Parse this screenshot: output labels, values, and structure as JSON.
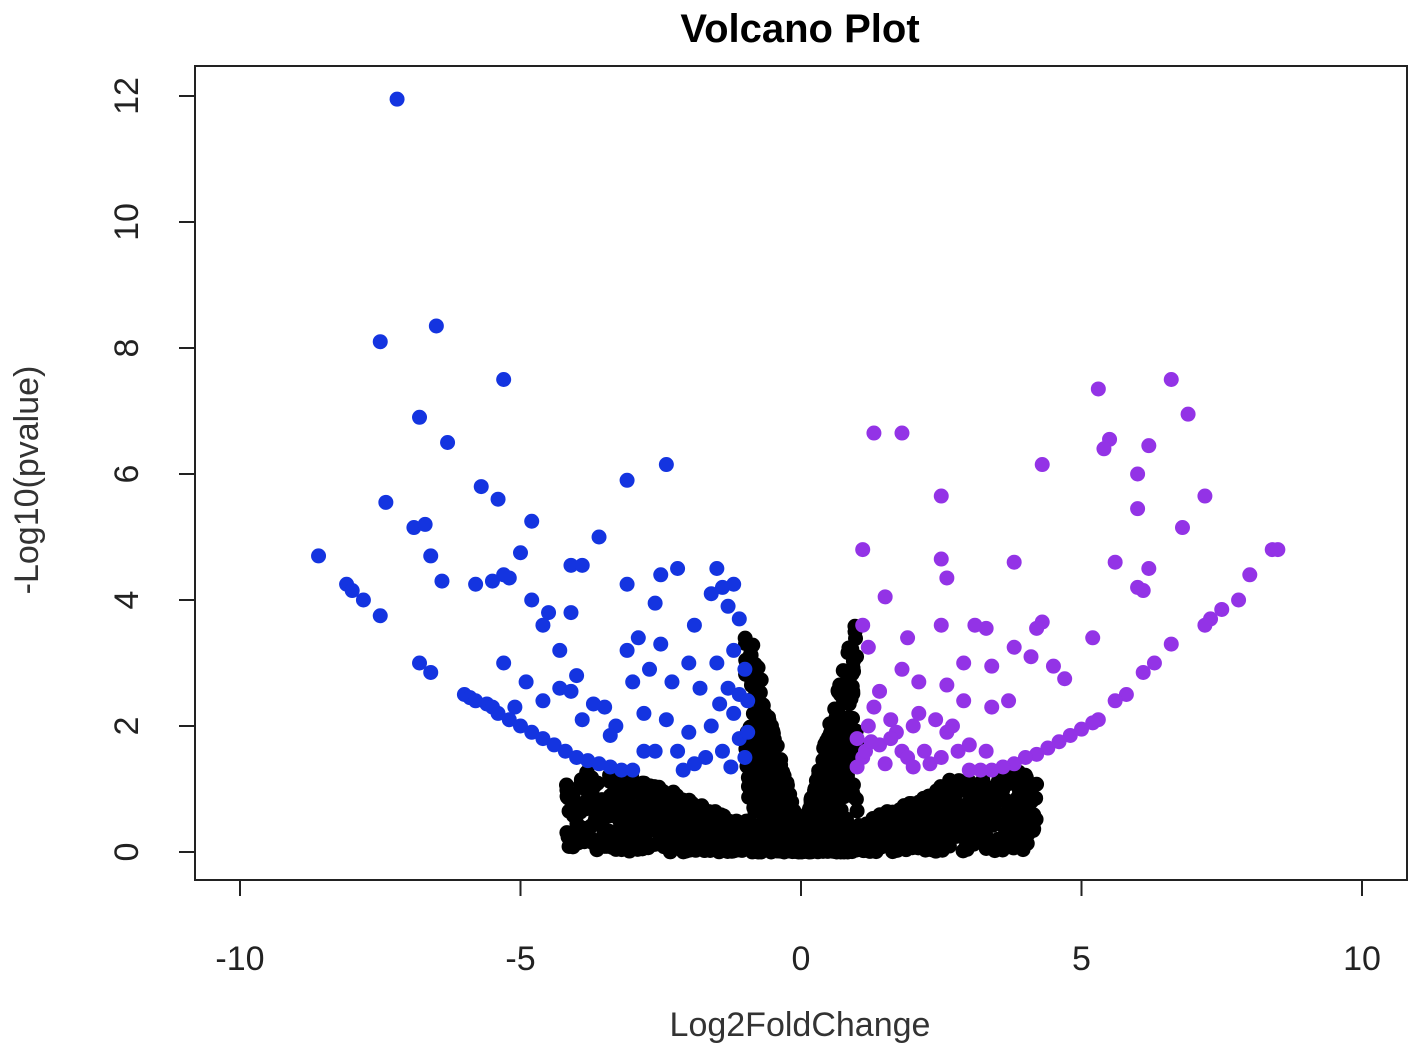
{
  "chart_data": {
    "type": "scatter",
    "title": "Volcano Plot",
    "xlabel": "Log2FoldChange",
    "ylabel": "-Log10(pvalue)",
    "xlim": [
      -10,
      10
    ],
    "ylim": [
      0,
      12
    ],
    "xticks": [
      "-10",
      "-5",
      "0",
      "5",
      "10"
    ],
    "yticks": [
      "0",
      "2",
      "4",
      "6",
      "8",
      "10",
      "12"
    ],
    "grid": false,
    "legend": "none",
    "colors": {
      "down": "#1434e0",
      "up": "#9333e6",
      "ns": "#000000"
    },
    "series": [
      {
        "color": "#1434e0",
        "points": [
          [
            -7.2,
            11.95
          ],
          [
            -6.5,
            8.35
          ],
          [
            -7.5,
            8.1
          ],
          [
            -5.3,
            7.5
          ],
          [
            -6.8,
            6.9
          ],
          [
            -6.3,
            6.5
          ],
          [
            -2.4,
            6.15
          ],
          [
            -3.1,
            5.9
          ],
          [
            -5.7,
            5.8
          ],
          [
            -5.4,
            5.6
          ],
          [
            -7.4,
            5.55
          ],
          [
            -4.8,
            5.25
          ],
          [
            -6.9,
            5.15
          ],
          [
            -6.7,
            5.2
          ],
          [
            -3.6,
            5.0
          ],
          [
            -8.6,
            4.7
          ],
          [
            -6.6,
            4.7
          ],
          [
            -5.0,
            4.75
          ],
          [
            -4.1,
            4.55
          ],
          [
            -3.9,
            4.55
          ],
          [
            -1.5,
            4.5
          ],
          [
            -2.2,
            4.5
          ],
          [
            -2.5,
            4.4
          ],
          [
            -5.3,
            4.4
          ],
          [
            -5.5,
            4.3
          ],
          [
            -5.2,
            4.35
          ],
          [
            -6.4,
            4.3
          ],
          [
            -3.1,
            4.25
          ],
          [
            -5.8,
            4.25
          ],
          [
            -8.1,
            4.25
          ],
          [
            -8.0,
            4.15
          ],
          [
            -7.8,
            4.0
          ],
          [
            -4.8,
            4.0
          ],
          [
            -2.6,
            3.95
          ],
          [
            -4.5,
            3.8
          ],
          [
            -4.1,
            3.8
          ],
          [
            -7.5,
            3.75
          ],
          [
            -4.6,
            3.6
          ],
          [
            -1.4,
            4.2
          ],
          [
            -1.2,
            4.25
          ],
          [
            -1.3,
            3.9
          ],
          [
            -1.1,
            3.7
          ],
          [
            -1.6,
            4.1
          ],
          [
            -1.9,
            3.6
          ],
          [
            -2.9,
            3.4
          ],
          [
            -2.5,
            3.3
          ],
          [
            -3.1,
            3.2
          ],
          [
            -4.3,
            3.2
          ],
          [
            -3.5,
            2.3
          ],
          [
            -2.0,
            3.0
          ],
          [
            -3.0,
            2.7
          ],
          [
            -4.0,
            2.8
          ],
          [
            -4.9,
            2.7
          ],
          [
            -5.3,
            3.0
          ],
          [
            -6.8,
            3.0
          ],
          [
            -6.6,
            2.85
          ],
          [
            -4.3,
            2.6
          ],
          [
            -4.1,
            2.55
          ],
          [
            -3.7,
            2.35
          ],
          [
            -3.3,
            2.0
          ],
          [
            -5.1,
            2.3
          ],
          [
            -4.6,
            2.4
          ],
          [
            -3.9,
            2.1
          ],
          [
            -3.4,
            1.85
          ],
          [
            -2.8,
            2.2
          ],
          [
            -2.6,
            1.6
          ],
          [
            -6.0,
            2.5
          ],
          [
            -5.9,
            2.45
          ],
          [
            -5.8,
            2.4
          ],
          [
            -5.6,
            2.35
          ],
          [
            -5.5,
            2.3
          ],
          [
            -5.4,
            2.2
          ],
          [
            -5.2,
            2.1
          ],
          [
            -5.0,
            2.0
          ],
          [
            -4.8,
            1.9
          ],
          [
            -4.6,
            1.8
          ],
          [
            -4.4,
            1.7
          ],
          [
            -4.2,
            1.6
          ],
          [
            -4.0,
            1.5
          ],
          [
            -3.8,
            1.45
          ],
          [
            -3.6,
            1.4
          ],
          [
            -3.4,
            1.35
          ],
          [
            -3.2,
            1.3
          ],
          [
            -3.0,
            1.3
          ],
          [
            -2.0,
            1.9
          ],
          [
            -1.8,
            2.6
          ],
          [
            -1.5,
            3.0
          ],
          [
            -1.3,
            2.6
          ],
          [
            -1.2,
            2.2
          ],
          [
            -1.1,
            1.8
          ],
          [
            -1.0,
            2.9
          ],
          [
            -1.0,
            1.5
          ],
          [
            -1.4,
            1.6
          ],
          [
            -1.7,
            1.5
          ],
          [
            -1.9,
            1.4
          ],
          [
            -2.1,
            1.3
          ],
          [
            -2.3,
            2.7
          ],
          [
            -2.4,
            2.1
          ],
          [
            -2.7,
            2.9
          ],
          [
            -2.8,
            1.6
          ],
          [
            -1.6,
            2.0
          ],
          [
            -1.1,
            2.5
          ],
          [
            -1.2,
            3.2
          ],
          [
            -0.95,
            1.9
          ],
          [
            -0.95,
            2.4
          ],
          [
            -1.25,
            1.35
          ],
          [
            -1.45,
            2.35
          ],
          [
            -2.2,
            1.6
          ]
        ]
      },
      {
        "color": "#9333e6",
        "points": [
          [
            6.6,
            7.5
          ],
          [
            5.3,
            7.35
          ],
          [
            6.9,
            6.95
          ],
          [
            1.3,
            6.65
          ],
          [
            1.8,
            6.65
          ],
          [
            5.5,
            6.55
          ],
          [
            5.4,
            6.4
          ],
          [
            6.2,
            6.45
          ],
          [
            4.3,
            6.15
          ],
          [
            6.0,
            6.0
          ],
          [
            2.5,
            5.65
          ],
          [
            7.2,
            5.65
          ],
          [
            6.0,
            5.45
          ],
          [
            6.8,
            5.15
          ],
          [
            1.1,
            4.8
          ],
          [
            8.4,
            4.8
          ],
          [
            8.5,
            4.8
          ],
          [
            2.5,
            4.65
          ],
          [
            3.8,
            4.6
          ],
          [
            5.6,
            4.6
          ],
          [
            6.2,
            4.5
          ],
          [
            2.6,
            4.35
          ],
          [
            8.0,
            4.4
          ],
          [
            6.0,
            4.2
          ],
          [
            6.1,
            4.15
          ],
          [
            1.5,
            4.05
          ],
          [
            7.8,
            4.0
          ],
          [
            7.5,
            3.85
          ],
          [
            7.3,
            3.7
          ],
          [
            7.2,
            3.6
          ],
          [
            4.3,
            3.65
          ],
          [
            4.2,
            3.55
          ],
          [
            3.3,
            3.55
          ],
          [
            2.5,
            3.6
          ],
          [
            3.1,
            3.6
          ],
          [
            1.1,
            3.6
          ],
          [
            1.9,
            3.4
          ],
          [
            5.2,
            3.4
          ],
          [
            6.6,
            3.3
          ],
          [
            3.8,
            3.25
          ],
          [
            4.1,
            3.1
          ],
          [
            1.2,
            3.25
          ],
          [
            2.9,
            3.0
          ],
          [
            6.3,
            3.0
          ],
          [
            6.1,
            2.85
          ],
          [
            4.5,
            2.95
          ],
          [
            1.8,
            2.9
          ],
          [
            3.4,
            2.95
          ],
          [
            2.1,
            2.7
          ],
          [
            4.7,
            2.75
          ],
          [
            2.6,
            2.65
          ],
          [
            1.4,
            2.55
          ],
          [
            2.9,
            2.4
          ],
          [
            3.7,
            2.4
          ],
          [
            3.4,
            2.3
          ],
          [
            5.8,
            2.5
          ],
          [
            5.6,
            2.4
          ],
          [
            5.3,
            2.1
          ],
          [
            5.2,
            2.05
          ],
          [
            5.0,
            1.95
          ],
          [
            4.8,
            1.85
          ],
          [
            4.6,
            1.75
          ],
          [
            4.4,
            1.65
          ],
          [
            4.2,
            1.55
          ],
          [
            4.0,
            1.5
          ],
          [
            3.8,
            1.4
          ],
          [
            3.6,
            1.35
          ],
          [
            3.4,
            1.3
          ],
          [
            3.2,
            1.3
          ],
          [
            3.0,
            1.3
          ],
          [
            2.8,
            1.6
          ],
          [
            2.6,
            1.9
          ],
          [
            2.4,
            2.1
          ],
          [
            2.2,
            1.6
          ],
          [
            2.0,
            2.0
          ],
          [
            1.8,
            1.6
          ],
          [
            1.6,
            2.1
          ],
          [
            1.4,
            1.7
          ],
          [
            1.2,
            2.0
          ],
          [
            1.1,
            1.5
          ],
          [
            1.0,
            1.8
          ],
          [
            1.0,
            1.35
          ],
          [
            1.3,
            2.3
          ],
          [
            1.5,
            1.4
          ],
          [
            1.7,
            1.9
          ],
          [
            1.9,
            1.5
          ],
          [
            2.1,
            2.2
          ],
          [
            2.3,
            1.4
          ],
          [
            2.7,
            2.0
          ],
          [
            3.0,
            1.7
          ],
          [
            3.3,
            1.6
          ],
          [
            1.15,
            1.6
          ],
          [
            1.25,
            1.75
          ],
          [
            1.6,
            1.8
          ],
          [
            2.0,
            1.35
          ],
          [
            2.5,
            1.5
          ]
        ]
      }
    ]
  }
}
